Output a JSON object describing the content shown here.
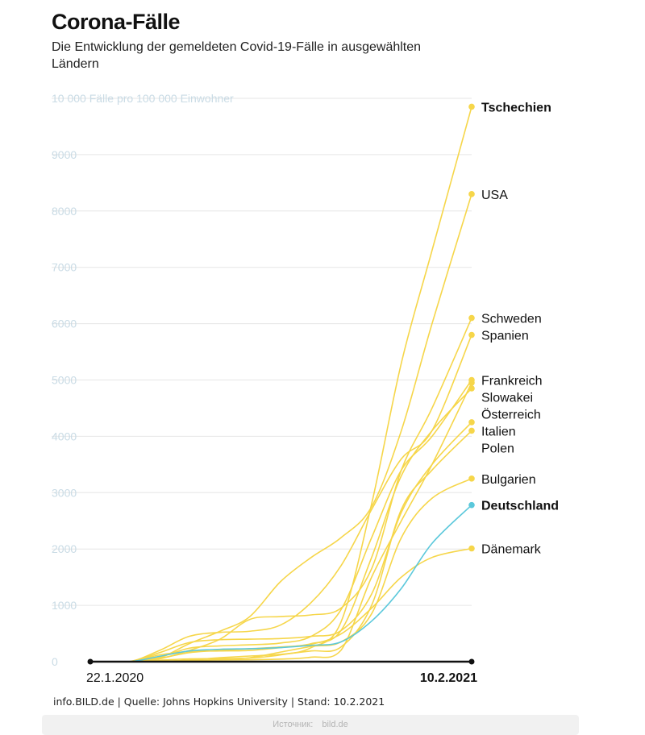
{
  "header": {
    "title": "Corona-Fälle",
    "subtitle": "Die Entwicklung der gemeldeten Covid-19-Fälle in ausgewählten Ländern"
  },
  "footer": {
    "source": "info.BILD.de | Quelle: Johns Hopkins University | Stand: 10.2.2021",
    "credit_label": "Источник:",
    "credit_value": "bild.de"
  },
  "colors": {
    "series": "#f6d64a",
    "highlight": "#5bc8db",
    "grid": "#e6e6e6",
    "tick": "#c9dbe5",
    "axis": "#111111"
  },
  "chart_data": {
    "type": "line",
    "title": "Corona-Fälle",
    "ylabel": "Fälle pro 100 000 Einwohner",
    "ylim": [
      0,
      10000
    ],
    "y_ticks": [
      "0",
      "1000",
      "2000",
      "3000",
      "4000",
      "5000",
      "6000",
      "7000",
      "8000",
      "9000",
      "10 000 Fälle pro 100 000 Einwohner"
    ],
    "x_tick_labels": [
      "22.1.2020",
      "10.2.2021"
    ],
    "x": [
      "2020-01-22",
      "2020-03-01",
      "2020-04-01",
      "2020-05-01",
      "2020-06-01",
      "2020-07-01",
      "2020-08-01",
      "2020-09-01",
      "2020-10-01",
      "2020-11-01",
      "2020-12-01",
      "2021-01-01",
      "2021-02-10"
    ],
    "grid": true,
    "series": [
      {
        "name": "Tschechien",
        "bold": true,
        "values": [
          0,
          0,
          25,
          50,
          55,
          65,
          120,
          250,
          700,
          2800,
          5300,
          7300,
          9850
        ]
      },
      {
        "name": "USA",
        "bold": false,
        "values": [
          0,
          0,
          70,
          320,
          540,
          800,
          1420,
          1850,
          2200,
          2750,
          4100,
          6000,
          8300
        ]
      },
      {
        "name": "Schweden",
        "bold": false,
        "values": [
          0,
          0,
          50,
          200,
          400,
          750,
          800,
          830,
          950,
          1650,
          3400,
          4500,
          6100
        ]
      },
      {
        "name": "Spanien",
        "bold": false,
        "values": [
          0,
          0,
          200,
          450,
          520,
          540,
          650,
          1050,
          1700,
          2700,
          3600,
          4100,
          5800
        ]
      },
      {
        "name": "Frankreich",
        "bold": false,
        "values": [
          0,
          0,
          80,
          240,
          280,
          300,
          330,
          450,
          920,
          2200,
          3400,
          4000,
          5000
        ]
      },
      {
        "name": "Slowakei",
        "bold": false,
        "values": [
          0,
          0,
          5,
          25,
          30,
          35,
          45,
          80,
          200,
          1500,
          2500,
          3500,
          4950
        ]
      },
      {
        "name": "Österreich",
        "bold": false,
        "values": [
          0,
          0,
          120,
          180,
          190,
          200,
          250,
          320,
          550,
          1850,
          3300,
          4100,
          4850
        ]
      },
      {
        "name": "Italien",
        "bold": false,
        "values": [
          0,
          0,
          160,
          340,
          390,
          400,
          410,
          450,
          550,
          1200,
          2650,
          3500,
          4250
        ]
      },
      {
        "name": "Polen",
        "bold": false,
        "values": [
          0,
          0,
          5,
          30,
          70,
          100,
          130,
          190,
          260,
          1000,
          2700,
          3400,
          4100
        ]
      },
      {
        "name": "Bulgarien",
        "bold": false,
        "values": [
          0,
          0,
          5,
          20,
          35,
          70,
          170,
          270,
          350,
          850,
          2200,
          2900,
          3250
        ]
      },
      {
        "name": "Deutschland",
        "bold": true,
        "highlight": true,
        "values": [
          0,
          0,
          95,
          190,
          220,
          230,
          250,
          290,
          350,
          720,
          1300,
          2100,
          2780
        ]
      },
      {
        "name": "Dänemark",
        "bold": false,
        "values": [
          0,
          0,
          60,
          160,
          200,
          230,
          260,
          310,
          490,
          950,
          1500,
          1850,
          2010
        ]
      }
    ]
  }
}
